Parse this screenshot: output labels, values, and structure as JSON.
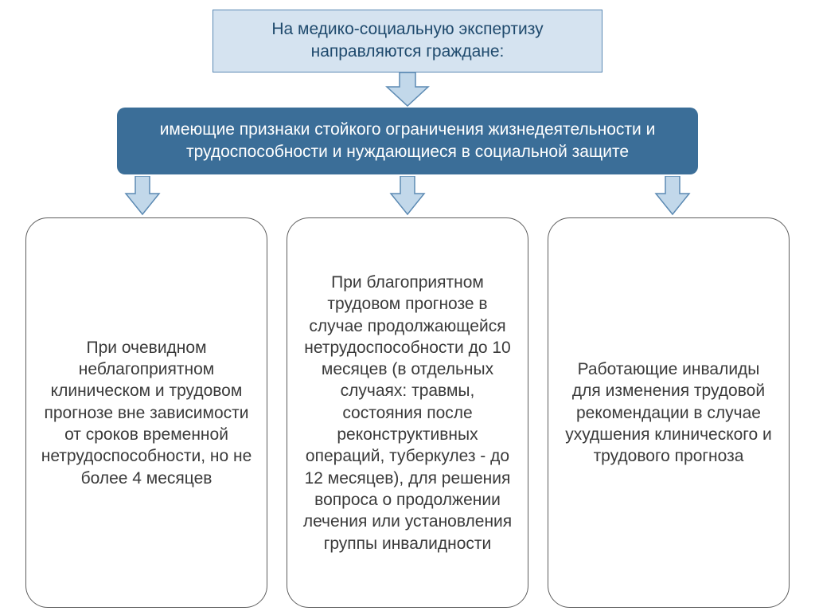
{
  "colors": {
    "topBoxFill": "#d5e3f0",
    "topBoxBorder": "#5b89b4",
    "topBoxText": "#1f4a6d",
    "arrowFill": "#c2d8ea",
    "arrowStroke": "#5c8ab3",
    "middleBoxFill": "#3b6e98",
    "middleBoxText": "#ffffff",
    "colBorder": "#5e5e5e",
    "colText": "#3a3a3a",
    "background": "#ffffff"
  },
  "layout": {
    "topBoxWidth": 490,
    "middleBoxWidth": 730,
    "middleBoxRadius": 10,
    "arrowLargeW": 56,
    "arrowLargeH": 44,
    "arrowSmallW": 46,
    "arrowSmallH": 50,
    "colMinHeight": 490,
    "colRadius": 28,
    "fontSize": 21
  },
  "topBox": {
    "text": "На медико-социальную экспертизу направляются граждане:"
  },
  "middleBox": {
    "text": "имеющие признаки стойкого ограничения жизнедеятельности и трудоспособности и нуждающиеся в социальной защите"
  },
  "columns": [
    {
      "text": "При очевидном неблагоприятном клиническом и трудовом прогнозе вне зависимости от сроков временной нетрудоспособности, но не более 4 месяцев"
    },
    {
      "text": "При благоприятном трудовом прогнозе в случае продолжающейся нетрудоспособности до 10 месяцев (в отдельных случаях: травмы, состояния после реконструктивных операций, туберкулез - до 12 месяцев), для решения вопроса о продолжении лечения или установления группы инвалидности"
    },
    {
      "text": "Работающие инвалиды для изменения трудовой рекомендации в случае ухудшения клинического и трудового прогноза"
    }
  ]
}
